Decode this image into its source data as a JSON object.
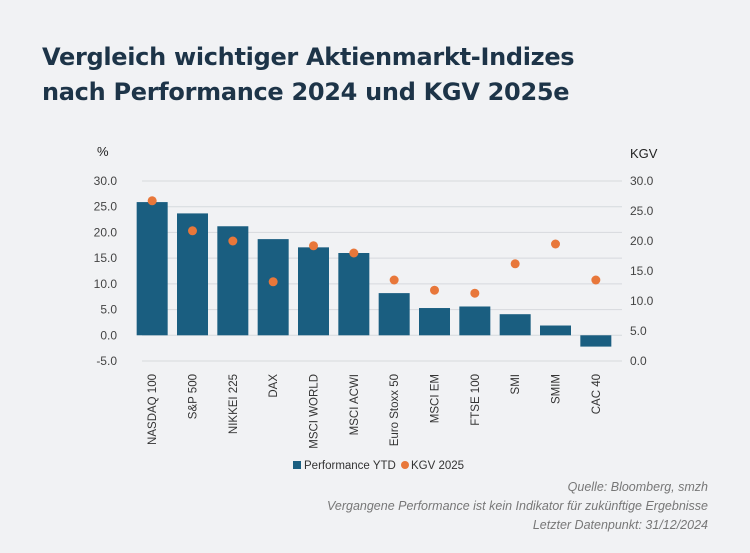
{
  "title_line1": "Vergleich wichtiger Aktienmarkt-Indizes",
  "title_line2": "nach Performance 2024 und KGV 2025e",
  "chart_data": {
    "type": "bar",
    "categories": [
      "NASDAQ 100",
      "S&P 500",
      "NIKKEI 225",
      "DAX",
      "MSCI WORLD",
      "MSCI ACWI",
      "Euro Stoxx 50",
      "MSCI EM",
      "FTSE 100",
      "SMI",
      "SMIM",
      "CAC 40"
    ],
    "series": [
      {
        "name": "Performance YTD",
        "type": "bar",
        "axis": "left",
        "color": "#1a5e80",
        "values": [
          25.9,
          23.7,
          21.2,
          18.7,
          17.1,
          16.0,
          8.2,
          5.3,
          5.6,
          4.1,
          1.9,
          -2.2
        ]
      },
      {
        "name": "KGV 2025",
        "type": "scatter",
        "axis": "right",
        "color": "#e8773a",
        "values": [
          26.7,
          21.7,
          20.0,
          13.2,
          19.2,
          18.0,
          13.5,
          11.8,
          11.3,
          16.2,
          19.5,
          13.5
        ]
      }
    ],
    "ylabel": "%",
    "ylim": [
      -5,
      30
    ],
    "yticks": [
      "30.0",
      "25.0",
      "20.0",
      "15.0",
      "10.0",
      "5.0",
      "0.0",
      "-5.0"
    ],
    "y2label": "KGV",
    "y2lim": [
      0,
      30
    ],
    "y2ticks": [
      "30.0",
      "25.0",
      "20.0",
      "15.0",
      "10.0",
      "5.0",
      "0.0"
    ],
    "grid": true,
    "legend_position": "bottom"
  },
  "source": {
    "line1": "Quelle: Bloomberg, smzh",
    "line2": "Vergangene Performance ist kein Indikator für zukünftige Ergebnisse",
    "line3": "Letzter Datenpunkt: 31/12/2024"
  }
}
